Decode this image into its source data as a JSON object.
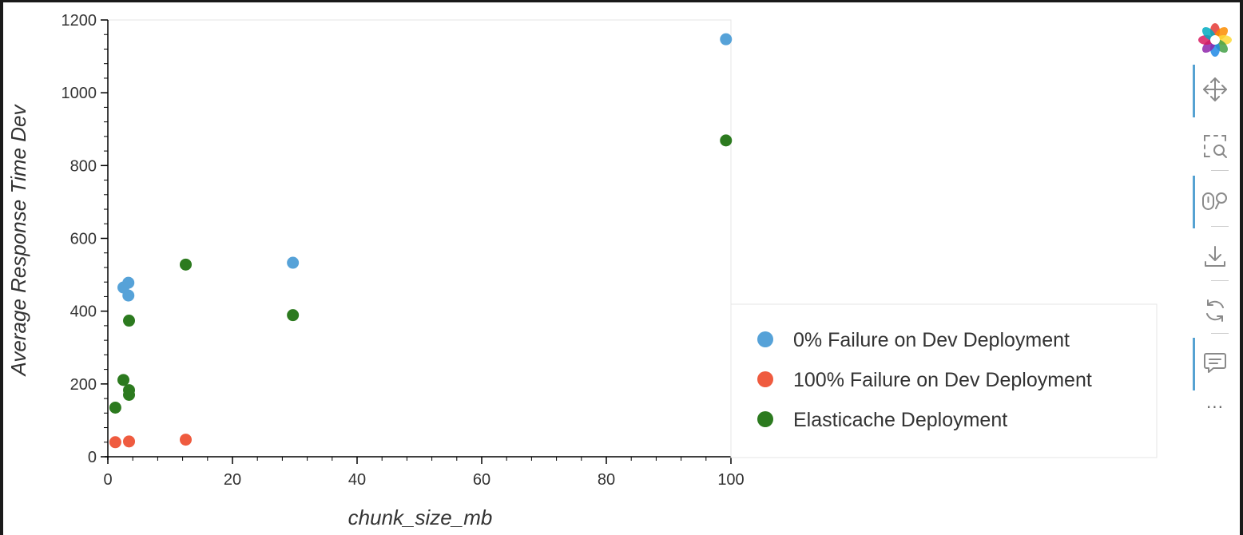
{
  "chart_data": {
    "type": "scatter",
    "xlabel": "chunk_size_mb",
    "ylabel": "Average Response Time Dev",
    "xlim": [
      0,
      100
    ],
    "ylim": [
      0,
      1200
    ],
    "xticks": [
      0,
      20,
      40,
      60,
      80,
      100
    ],
    "yticks": [
      0,
      200,
      400,
      600,
      800,
      1000,
      1200
    ],
    "x_minor_step": 4,
    "y_minor_step": 40,
    "grid": false,
    "legend_position": "right",
    "series": [
      {
        "name": "0% Failure on Dev Deployment",
        "color": "#56a2d8",
        "points": [
          [
            2.5,
            465
          ],
          [
            3.3,
            478
          ],
          [
            3.3,
            443
          ],
          [
            29.7,
            533
          ],
          [
            99.2,
            1147
          ]
        ]
      },
      {
        "name": "100% Failure on Dev Deployment",
        "color": "#ef5b3f",
        "points": [
          [
            1.2,
            40
          ],
          [
            3.4,
            42
          ],
          [
            12.5,
            47
          ]
        ]
      },
      {
        "name": "Elasticache Deployment",
        "color": "#2c7a1f",
        "points": [
          [
            1.2,
            135
          ],
          [
            2.5,
            211
          ],
          [
            3.4,
            183
          ],
          [
            3.4,
            170
          ],
          [
            3.4,
            374
          ],
          [
            12.5,
            528
          ],
          [
            29.7,
            389
          ],
          [
            99.2,
            869
          ]
        ]
      }
    ]
  },
  "toolbar": {
    "items": [
      {
        "icon": "bokeh-logo-icon",
        "active": false
      },
      {
        "icon": "pan-icon",
        "active": true
      },
      {
        "icon": "box-zoom-icon",
        "active": false
      },
      {
        "icon": "wheel-zoom-icon",
        "active": true
      },
      {
        "icon": "save-icon",
        "active": false
      },
      {
        "icon": "reset-icon",
        "active": false
      },
      {
        "icon": "hover-icon",
        "active": true
      }
    ],
    "more_label": "···"
  }
}
